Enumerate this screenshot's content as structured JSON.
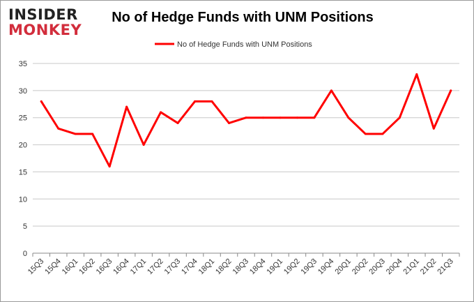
{
  "logo": {
    "line1": "INSIDER",
    "line2": "MONKEY"
  },
  "colors": {
    "series": "#ff0000",
    "grid": "#c8c8c8",
    "axis": "#888888",
    "logo_accent": "#d22d3c"
  },
  "chart_data": {
    "type": "line",
    "title": "No of Hedge Funds with UNM Positions",
    "legend": "top-center",
    "grid": true,
    "xlabel": "",
    "ylabel": "",
    "ylim": [
      0,
      35
    ],
    "yticks": [
      0,
      5,
      10,
      15,
      20,
      25,
      30,
      35
    ],
    "categories": [
      "15Q3",
      "15Q4",
      "16Q1",
      "16Q2",
      "16Q3",
      "16Q4",
      "17Q1",
      "17Q2",
      "17Q3",
      "17Q4",
      "18Q1",
      "18Q2",
      "18Q3",
      "18Q4",
      "19Q1",
      "19Q2",
      "19Q3",
      "19Q4",
      "20Q1",
      "20Q2",
      "20Q3",
      "20Q4",
      "21Q1",
      "21Q2",
      "21Q3"
    ],
    "series": [
      {
        "name": "No of Hedge Funds with UNM  Positions",
        "values": [
          28,
          23,
          22,
          22,
          16,
          27,
          20,
          26,
          24,
          28,
          28,
          24,
          25,
          25,
          25,
          25,
          25,
          30,
          25,
          22,
          22,
          25,
          33,
          23,
          30
        ]
      }
    ]
  }
}
